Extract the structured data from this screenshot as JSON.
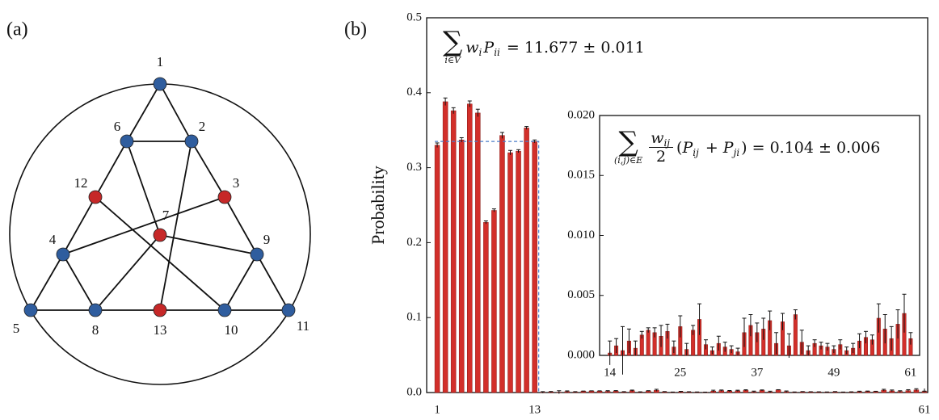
{
  "panel_a": {
    "label": "(a)",
    "nodes": [
      {
        "label": "1",
        "color": "#2f5d9e"
      },
      {
        "label": "2",
        "color": "#2f5d9e"
      },
      {
        "label": "3",
        "color": "#c62828"
      },
      {
        "label": "4",
        "color": "#2f5d9e"
      },
      {
        "label": "5",
        "color": "#2f5d9e"
      },
      {
        "label": "6",
        "color": "#2f5d9e"
      },
      {
        "label": "7",
        "color": "#c62828"
      },
      {
        "label": "8",
        "color": "#2f5d9e"
      },
      {
        "label": "9",
        "color": "#2f5d9e"
      },
      {
        "label": "10",
        "color": "#2f5d9e"
      },
      {
        "label": "11",
        "color": "#2f5d9e"
      },
      {
        "label": "12",
        "color": "#c62828"
      },
      {
        "label": "13",
        "color": "#c62828"
      }
    ]
  },
  "panel_b_label": "(b)",
  "chart_data": [
    {
      "type": "bar",
      "ylabel": "Probability",
      "color": "#d22f2a",
      "x": [
        1,
        2,
        3,
        4,
        5,
        6,
        7,
        8,
        9,
        10,
        11,
        12,
        13,
        14,
        15,
        16,
        17,
        18,
        19,
        20,
        21,
        22,
        23,
        24,
        25,
        26,
        27,
        28,
        29,
        30,
        31,
        32,
        33,
        34,
        35,
        36,
        37,
        38,
        39,
        40,
        41,
        42,
        43,
        44,
        45,
        46,
        47,
        48,
        49,
        50,
        51,
        52,
        53,
        54,
        55,
        56,
        57,
        58,
        59,
        60,
        61
      ],
      "values": [
        0.33,
        0.388,
        0.376,
        0.337,
        0.385,
        0.373,
        0.227,
        0.243,
        0.343,
        0.32,
        0.322,
        0.353,
        0.335,
        0.0002,
        0.0008,
        0.0004,
        0.0012,
        0.0006,
        0.0017,
        0.0021,
        0.0019,
        0.0016,
        0.002,
        0.0007,
        0.0024,
        0.0005,
        0.0021,
        0.003,
        0.0009,
        0.0004,
        0.001,
        0.0007,
        0.0005,
        0.0003,
        0.0019,
        0.0025,
        0.0019,
        0.0022,
        0.0029,
        0.001,
        0.0028,
        0.0008,
        0.0034,
        0.0011,
        0.0004,
        0.001,
        0.0008,
        0.0007,
        0.0005,
        0.0009,
        0.0004,
        0.0006,
        0.0012,
        0.0015,
        0.0013,
        0.0031,
        0.0022,
        0.0014,
        0.0026,
        0.0035,
        0.0014
      ],
      "errors": [
        0.003,
        0.005,
        0.004,
        0.003,
        0.004,
        0.005,
        0.002,
        0.002,
        0.004,
        0.003,
        0.002,
        0.002,
        0.002,
        0.001,
        0.0006,
        0.002,
        0.001,
        0.0006,
        0.0003,
        0.0002,
        0.0004,
        0.0009,
        0.0006,
        0.0005,
        0.0009,
        0.0005,
        0.0004,
        0.0013,
        0.0004,
        0.0003,
        0.0006,
        0.0004,
        0.0003,
        0.0003,
        0.0012,
        0.0009,
        0.0008,
        0.0009,
        0.0008,
        0.0009,
        0.0007,
        0.001,
        0.0004,
        0.001,
        0.0004,
        0.0003,
        0.0003,
        0.0003,
        0.0003,
        0.0004,
        0.0003,
        0.0004,
        0.0006,
        0.0005,
        0.0004,
        0.0012,
        0.0012,
        0.001,
        0.0012,
        0.0016,
        0.0005
      ],
      "xlim": [
        -0.3,
        61.4
      ],
      "xticks": [
        1,
        13,
        61
      ],
      "ylim": [
        0,
        0.5
      ],
      "yticks": [
        {
          "value": 0,
          "label": "0.0"
        },
        0.1,
        0.2,
        0.3,
        0.4,
        0.5
      ],
      "annotation": [
        {
          "s": "sum",
          "t": "∑",
          "under": "i∈V"
        },
        {
          "s": "i",
          "t": "w"
        },
        {
          "s": "sub",
          "t": "i"
        },
        {
          "s": "i",
          "t": "P"
        },
        {
          "s": "sub",
          "t": "ii"
        },
        {
          "s": "n",
          "t": " = 11.677 ± 0.011"
        }
      ]
    },
    {
      "type": "bar",
      "color": "#d22f2a",
      "x": [
        14,
        15,
        16,
        17,
        18,
        19,
        20,
        21,
        22,
        23,
        24,
        25,
        26,
        27,
        28,
        29,
        30,
        31,
        32,
        33,
        34,
        35,
        36,
        37,
        38,
        39,
        40,
        41,
        42,
        43,
        44,
        45,
        46,
        47,
        48,
        49,
        50,
        51,
        52,
        53,
        54,
        55,
        56,
        57,
        58,
        59,
        60,
        61
      ],
      "values": [
        0.0002,
        0.0008,
        0.0004,
        0.0012,
        0.0006,
        0.0017,
        0.0021,
        0.0019,
        0.0016,
        0.002,
        0.0007,
        0.0024,
        0.0005,
        0.0021,
        0.003,
        0.0009,
        0.0004,
        0.001,
        0.0007,
        0.0005,
        0.0003,
        0.0019,
        0.0025,
        0.0019,
        0.0022,
        0.0029,
        0.001,
        0.0028,
        0.0008,
        0.0034,
        0.0011,
        0.0004,
        0.001,
        0.0008,
        0.0007,
        0.0005,
        0.0009,
        0.0004,
        0.0006,
        0.0012,
        0.0015,
        0.0013,
        0.0031,
        0.0022,
        0.0014,
        0.0026,
        0.0035,
        0.0014
      ],
      "errors": [
        0.001,
        0.0006,
        0.002,
        0.001,
        0.0006,
        0.0003,
        0.0002,
        0.0004,
        0.0009,
        0.0006,
        0.0005,
        0.0009,
        0.0005,
        0.0004,
        0.0013,
        0.0004,
        0.0003,
        0.0006,
        0.0004,
        0.0003,
        0.0003,
        0.0012,
        0.0009,
        0.0008,
        0.0009,
        0.0008,
        0.0009,
        0.0007,
        0.001,
        0.0004,
        0.001,
        0.0004,
        0.0003,
        0.0003,
        0.0003,
        0.0003,
        0.0004,
        0.0003,
        0.0004,
        0.0006,
        0.0005,
        0.0004,
        0.0012,
        0.0012,
        0.001,
        0.0012,
        0.0016,
        0.0005
      ],
      "xlim": [
        12.4,
        62.4
      ],
      "xticks": [
        14,
        25,
        37,
        49,
        61
      ],
      "ylim": [
        0,
        0.02
      ],
      "yticks": [
        {
          "value": 0,
          "label": "0.000"
        },
        {
          "value": 0.005,
          "label": "0.005"
        },
        {
          "value": 0.01,
          "label": "0.010"
        },
        {
          "value": 0.015,
          "label": "0.015"
        },
        {
          "value": 0.02,
          "label": "0.020"
        }
      ],
      "annotation": [
        {
          "s": "sum",
          "t": "∑",
          "under": "(i,j)∈E"
        },
        {
          "s": "frac",
          "num": "w",
          "numsub": "ij",
          "den": "2"
        },
        {
          "s": "n",
          "t": "("
        },
        {
          "s": "i",
          "t": "P"
        },
        {
          "s": "sub",
          "t": "ij"
        },
        {
          "s": "n",
          "t": " + "
        },
        {
          "s": "i",
          "t": "P"
        },
        {
          "s": "sub",
          "t": "ji"
        },
        {
          "s": "n",
          "t": ") = 0.104 ± 0.006"
        }
      ]
    }
  ]
}
